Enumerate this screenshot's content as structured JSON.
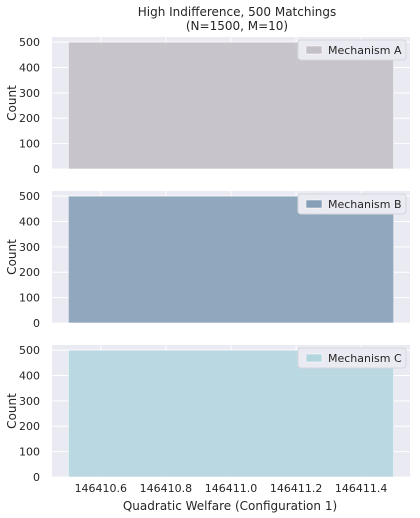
{
  "chart_data": {
    "type": "bar",
    "title": "High Indifference, 500 Matchings\n(N=1500, M=10)",
    "xlabel": "Quadratic Welfare (Configuration 1)",
    "ylabel": "Count",
    "xlim": [
      146410.45,
      146411.55
    ],
    "ylim": [
      0,
      520
    ],
    "xticks": [
      "146410.6",
      "146410.8",
      "146411.0",
      "146411.2",
      "146411.4"
    ],
    "yticks": [
      "0",
      "100",
      "200",
      "300",
      "400",
      "500"
    ],
    "grid": true,
    "legend_position": "top-right",
    "panels": [
      {
        "legend": "Mechanism A",
        "color": "#c3c0c7",
        "bin": [
          146410.5,
          146411.5
        ],
        "count": 500
      },
      {
        "legend": "Mechanism B",
        "color": "#86a0b8",
        "bin": [
          146410.5,
          146411.5
        ],
        "count": 500
      },
      {
        "legend": "Mechanism C",
        "color": "#b4d6df",
        "bin": [
          146410.5,
          146411.5
        ],
        "count": 500
      }
    ]
  }
}
